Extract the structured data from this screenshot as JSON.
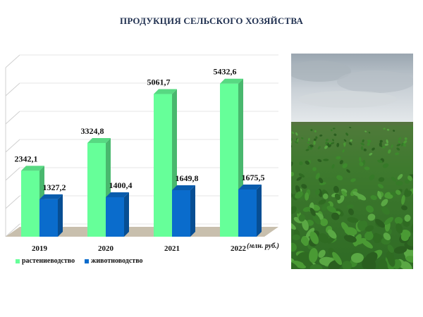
{
  "title": "ПРОДУКЦИЯ СЕЛЬСКОГО ХОЗЯЙСТВА",
  "chart_data": {
    "type": "bar",
    "categories": [
      "2019",
      "2020",
      "2021",
      "2022"
    ],
    "series": [
      {
        "name": "растениеводство",
        "values": [
          2342.1,
          3324.8,
          5061.7,
          5432.6
        ],
        "labels": [
          "2342,1",
          "3324,8",
          "5061,7",
          "5432,6"
        ],
        "color": "#66ff99"
      },
      {
        "name": "животноводство",
        "values": [
          1327.2,
          1400.4,
          1649.8,
          1675.5
        ],
        "labels": [
          "1327,2",
          "1400,4",
          "1649,8",
          "1675,5"
        ],
        "color": "#0a6ccc"
      }
    ],
    "unit_label": "(млн. руб.)",
    "ylim": [
      0,
      6000
    ],
    "grid": true,
    "legend": "bottom-left"
  },
  "photo": {
    "subject": "soybean-field-photo"
  }
}
